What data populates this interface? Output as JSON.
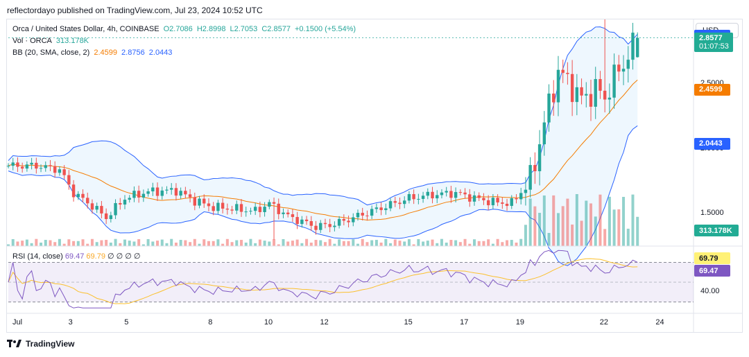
{
  "header": {
    "credit": "reflectordayo published on TradingView.com, Jul 23, 2024 10:52 UTC"
  },
  "legend": {
    "symbol": "Orca / United States Dollar, 4h, COINBASE",
    "ohlc": {
      "o": "O2.7086",
      "h": "H2.8998",
      "l": "L2.7053",
      "c": "C2.8577",
      "chg": "+0.1500 (+5.54%)"
    },
    "vol_label": "Vol · ORCA",
    "vol_value": "313.178K",
    "bb_label": "BB (20, SMA, close, 2)",
    "bb_mid": "2.4599",
    "bb_upper": "2.8756",
    "bb_lower": "2.0443"
  },
  "rsi_legend": {
    "label": "RSI (14, close)",
    "v1": "69.47",
    "v2": "69.79",
    "rest": "∅ ∅ ∅ ∅"
  },
  "currency_button": "USD",
  "price_axis": {
    "ticks": [
      {
        "label": "2.5000",
        "value": 2.5
      },
      {
        "label": "2.0000",
        "value": 2.0
      },
      {
        "label": "1.5000",
        "value": 1.5
      }
    ],
    "tags": [
      {
        "label": "2.8756",
        "sub": "",
        "value": 2.8756,
        "color": "#2962ff"
      },
      {
        "label": "2.8577",
        "sub": "01:07:53",
        "value": 2.8577,
        "color": "#22ab94"
      },
      {
        "label": "2.4599",
        "sub": "",
        "value": 2.4599,
        "color": "#f57c00"
      },
      {
        "label": "2.0443",
        "sub": "",
        "value": 2.0443,
        "color": "#2962ff"
      },
      {
        "label": "313.178K",
        "sub": "",
        "value": 313178,
        "color": "#22ab94"
      }
    ]
  },
  "rsi_axis": {
    "tags": [
      {
        "label": "69.79",
        "value": 69.79,
        "color": "#fff176"
      },
      {
        "label": "69.47",
        "value": 69.47,
        "color": "#7e57c2"
      }
    ],
    "ticks": [
      {
        "label": "40.00",
        "value": 40
      }
    ]
  },
  "x_axis": {
    "labels": [
      {
        "label": "Jul",
        "index": 0
      },
      {
        "label": "3",
        "index": 12
      },
      {
        "label": "5",
        "index": 24
      },
      {
        "label": "8",
        "index": 42
      },
      {
        "label": "10",
        "index": 54
      },
      {
        "label": "12",
        "index": 66
      },
      {
        "label": "15",
        "index": 84
      },
      {
        "label": "17",
        "index": 96
      },
      {
        "label": "19",
        "index": 108
      },
      {
        "label": "22",
        "index": 126
      },
      {
        "label": "24",
        "index": 138
      }
    ]
  },
  "branding": "TradingView",
  "chart_data": {
    "type": "candlestick",
    "title": "Orca / United States Dollar, 4h, COINBASE",
    "ylim": [
      1.25,
      3.0
    ],
    "rsi_ylim": [
      20,
      85
    ],
    "rsi_bands": [
      70,
      30
    ],
    "colors": {
      "up": "#26a69a",
      "down": "#ef5350",
      "bb_band": "#2962ff",
      "bb_mid": "#f57c00",
      "rsi": "#7e57c2",
      "rsi_ma": "#fbc02d"
    },
    "candles": [],
    "anchors": [
      [
        0,
        1.87
      ],
      [
        6,
        1.87
      ],
      [
        11,
        1.84
      ],
      [
        14,
        1.66
      ],
      [
        18,
        1.56
      ],
      [
        21,
        1.47
      ],
      [
        25,
        1.62
      ],
      [
        30,
        1.67
      ],
      [
        36,
        1.68
      ],
      [
        40,
        1.6
      ],
      [
        44,
        1.55
      ],
      [
        48,
        1.54
      ],
      [
        53,
        1.52
      ],
      [
        56,
        1.58
      ],
      [
        60,
        1.48
      ],
      [
        66,
        1.4
      ],
      [
        70,
        1.42
      ],
      [
        74,
        1.47
      ],
      [
        78,
        1.52
      ],
      [
        82,
        1.57
      ],
      [
        86,
        1.62
      ],
      [
        92,
        1.65
      ],
      [
        96,
        1.66
      ],
      [
        100,
        1.62
      ],
      [
        104,
        1.59
      ],
      [
        108,
        1.58
      ],
      [
        112,
        1.76
      ],
      [
        115,
        2.2
      ],
      [
        118,
        2.6
      ],
      [
        121,
        2.48
      ],
      [
        123,
        2.38
      ],
      [
        126,
        2.46
      ],
      [
        128,
        2.4
      ],
      [
        130,
        2.55
      ],
      [
        132,
        2.66
      ],
      [
        135,
        2.86
      ]
    ]
  }
}
